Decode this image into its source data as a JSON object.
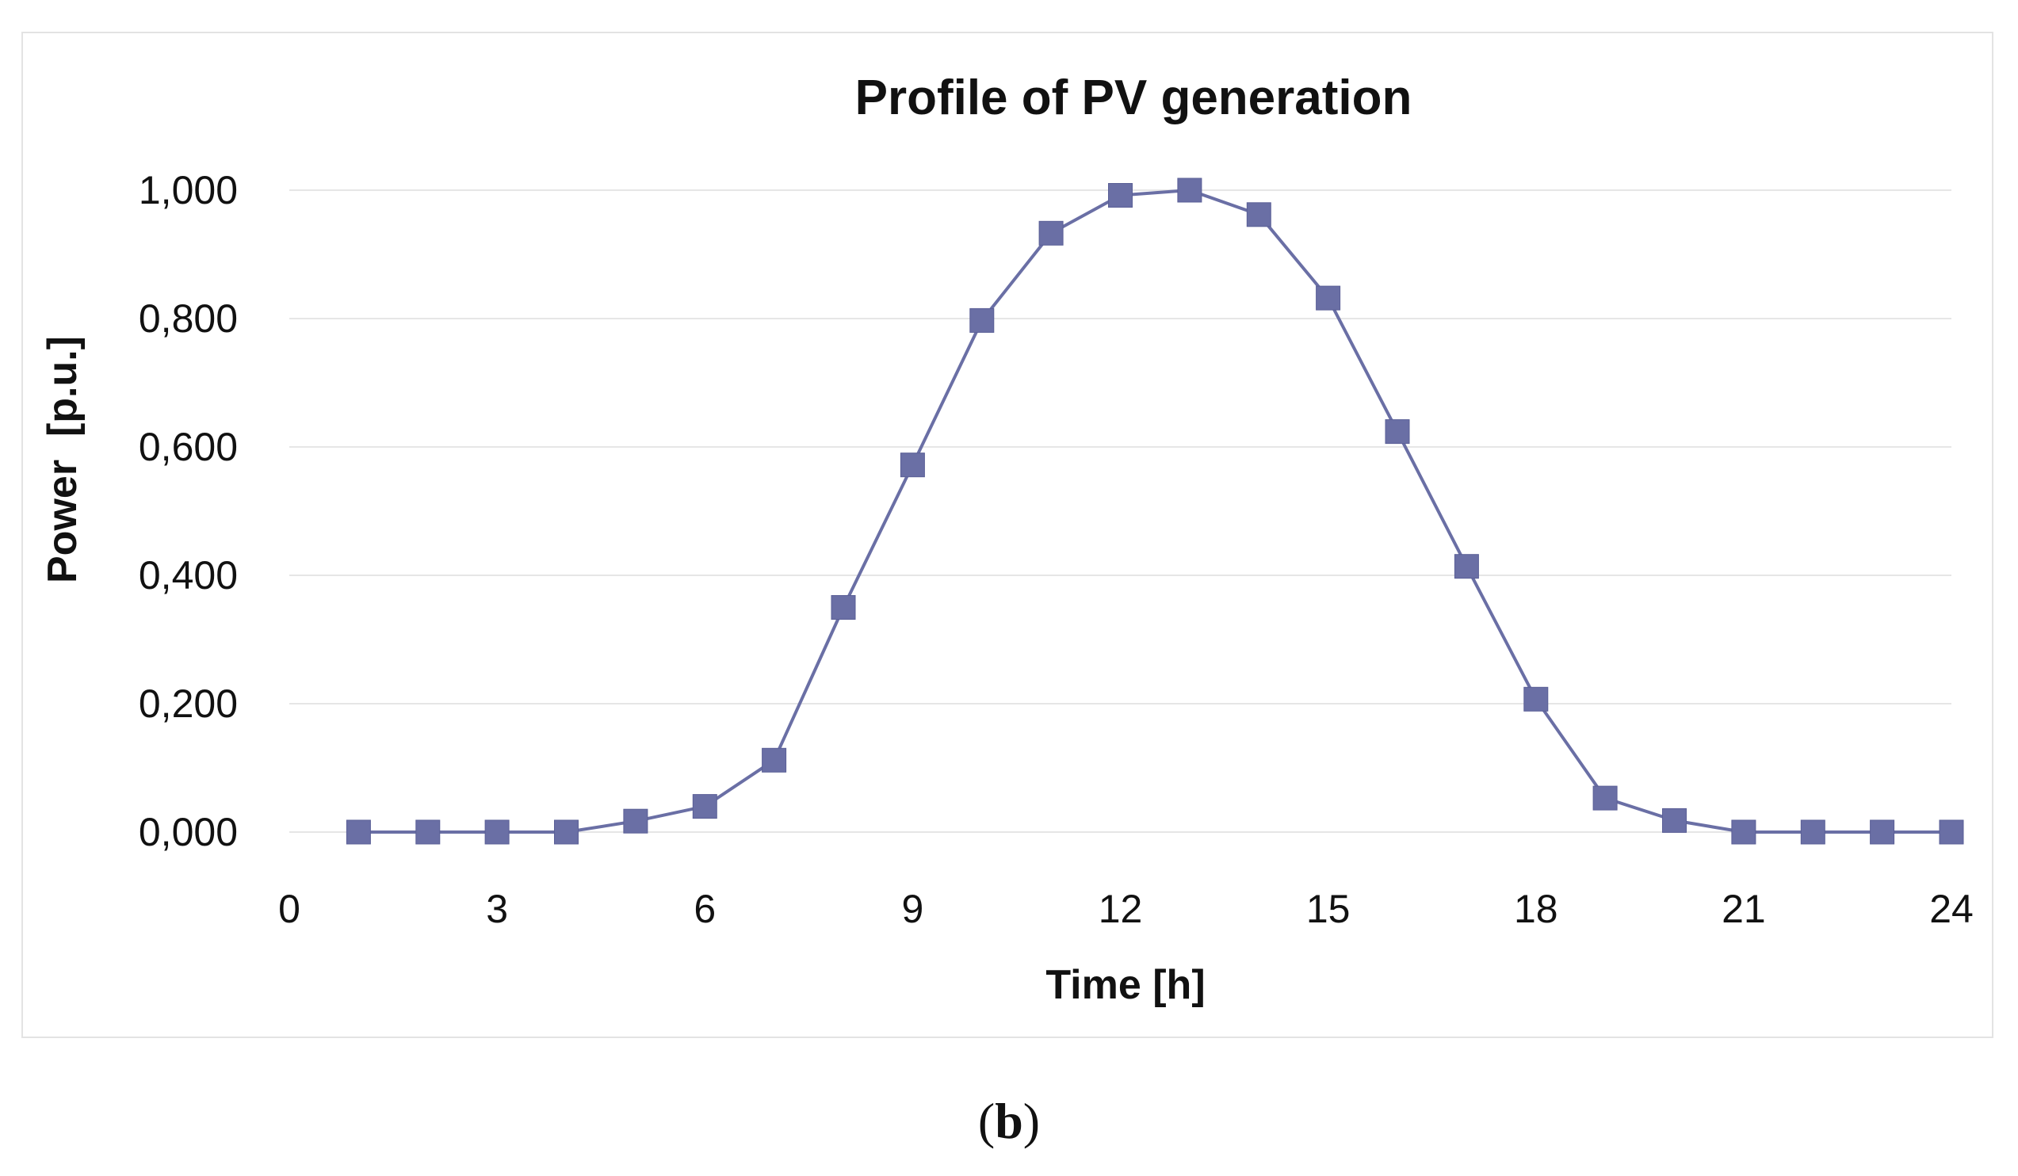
{
  "chart_data": {
    "type": "line",
    "title": "Profile of PV generation",
    "xlabel": "Time [h]",
    "ylabel": "Power  [p.u.]",
    "xlim": [
      0,
      24
    ],
    "ylim": [
      0,
      1
    ],
    "x_ticks": [
      0,
      3,
      6,
      9,
      12,
      15,
      18,
      21,
      24
    ],
    "x_tick_labels": [
      "0",
      "3",
      "6",
      "9",
      "12",
      "15",
      "18",
      "21",
      "24"
    ],
    "y_ticks": [
      0,
      0.2,
      0.4,
      0.6,
      0.8,
      1.0
    ],
    "y_tick_labels": [
      "0,000",
      "0,200",
      "0,400",
      "0,600",
      "0,800",
      "1,000"
    ],
    "grid": "horizontal",
    "legend": "none",
    "series": [
      {
        "name": "PV generation",
        "color": "#6a6fa5",
        "marker": "square",
        "x": [
          1,
          2,
          3,
          4,
          5,
          6,
          7,
          8,
          9,
          10,
          11,
          12,
          13,
          14,
          15,
          16,
          17,
          18,
          19,
          20,
          21,
          22,
          23,
          24
        ],
        "values": [
          0.0,
          0.0,
          0.0,
          0.0,
          0.017,
          0.04,
          0.112,
          0.35,
          0.572,
          0.797,
          0.933,
          0.992,
          1.0,
          0.962,
          0.832,
          0.624,
          0.414,
          0.207,
          0.053,
          0.018,
          0.0,
          0.0,
          0.0,
          0.0
        ]
      }
    ]
  },
  "caption": {
    "open": "(",
    "letter": "b",
    "close": ")"
  }
}
